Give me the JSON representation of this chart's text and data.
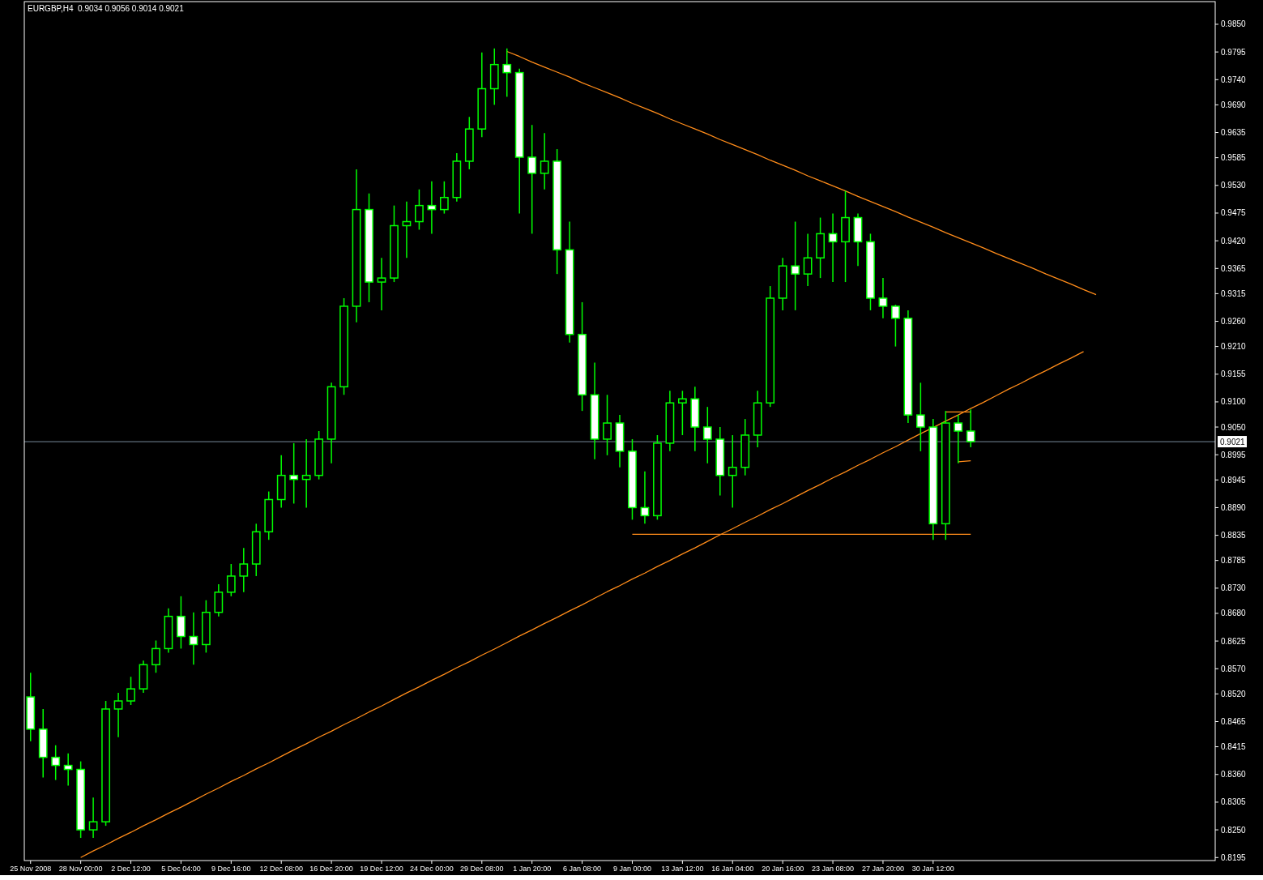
{
  "chart_data": {
    "type": "candlestick",
    "title": "EURGBP,H4  0.9034 0.9056 0.9014 0.9021",
    "color": "#00ff00",
    "categories": [
      "25 Nov 2008",
      null,
      null,
      null,
      "28 Nov 00:00",
      null,
      null,
      null,
      "2 Dec 12:00",
      null,
      null,
      null,
      "5 Dec 04:00",
      null,
      null,
      null,
      "9 Dec 16:00",
      null,
      null,
      null,
      "12 Dec 08:00",
      null,
      null,
      null,
      "16 Dec 20:00",
      null,
      null,
      null,
      "19 Dec 12:00",
      null,
      null,
      null,
      "24 Dec 00:00",
      null,
      null,
      null,
      "29 Dec 08:00",
      null,
      null,
      null,
      "1 Jan 20:00",
      null,
      null,
      null,
      "6 Jan 08:00",
      null,
      null,
      null,
      "9 Jan 00:00",
      null,
      null,
      null,
      "13 Jan 12:00",
      null,
      null,
      null,
      "16 Jan 04:00",
      null,
      null,
      null,
      "20 Jan 16:00",
      null,
      null,
      null,
      "23 Jan 08:00",
      null,
      null,
      null,
      "27 Jan 20:00",
      null,
      null,
      null,
      "30 Jan 12:00",
      null,
      null,
      null,
      null,
      null,
      null,
      null,
      null,
      null,
      null,
      null,
      null,
      null,
      null,
      null,
      null,
      null,
      null,
      null,
      null,
      null,
      null
    ],
    "ohlc": [
      [
        0.8514,
        0.8562,
        0.8426,
        0.845
      ],
      [
        0.845,
        0.849,
        0.8354,
        0.8394
      ],
      [
        0.8394,
        0.8418,
        0.8349,
        0.8378
      ],
      [
        0.8378,
        0.8402,
        0.8338,
        0.837
      ],
      [
        0.837,
        0.8386,
        0.8234,
        0.825
      ],
      [
        0.825,
        0.8314,
        0.8234,
        0.8266
      ],
      [
        0.8266,
        0.8506,
        0.8258,
        0.849
      ],
      [
        0.849,
        0.8522,
        0.8434,
        0.8506
      ],
      [
        0.8506,
        0.8554,
        0.8498,
        0.853
      ],
      [
        0.853,
        0.8586,
        0.8522,
        0.8578
      ],
      [
        0.8578,
        0.8626,
        0.8562,
        0.861
      ],
      [
        0.861,
        0.869,
        0.8602,
        0.8674
      ],
      [
        0.8674,
        0.8714,
        0.861,
        0.8634
      ],
      [
        0.8634,
        0.8682,
        0.8578,
        0.8618
      ],
      [
        0.8618,
        0.8706,
        0.8602,
        0.8682
      ],
      [
        0.8682,
        0.8738,
        0.8674,
        0.8722
      ],
      [
        0.8722,
        0.8778,
        0.8714,
        0.8754
      ],
      [
        0.8754,
        0.881,
        0.8722,
        0.8778
      ],
      [
        0.8778,
        0.8858,
        0.8754,
        0.8842
      ],
      [
        0.8842,
        0.8922,
        0.8826,
        0.8906
      ],
      [
        0.8906,
        0.8994,
        0.889,
        0.8954
      ],
      [
        0.8954,
        0.9018,
        0.8898,
        0.8946
      ],
      [
        0.8946,
        0.9026,
        0.889,
        0.8954
      ],
      [
        0.8954,
        0.9042,
        0.8946,
        0.9026
      ],
      [
        0.9026,
        0.9138,
        0.8978,
        0.913
      ],
      [
        0.913,
        0.9306,
        0.9114,
        0.929
      ],
      [
        0.929,
        0.9562,
        0.9258,
        0.9482
      ],
      [
        0.9482,
        0.9514,
        0.9298,
        0.9338
      ],
      [
        0.9338,
        0.9386,
        0.9282,
        0.9346
      ],
      [
        0.9346,
        0.949,
        0.9338,
        0.945
      ],
      [
        0.945,
        0.9498,
        0.9386,
        0.9458
      ],
      [
        0.9458,
        0.9522,
        0.9442,
        0.949
      ],
      [
        0.949,
        0.9538,
        0.9434,
        0.9482
      ],
      [
        0.9482,
        0.9538,
        0.9474,
        0.9506
      ],
      [
        0.9506,
        0.9594,
        0.9498,
        0.9578
      ],
      [
        0.9578,
        0.9666,
        0.9562,
        0.9642
      ],
      [
        0.9642,
        0.9794,
        0.9626,
        0.9722
      ],
      [
        0.9722,
        0.9802,
        0.969,
        0.977
      ],
      [
        0.977,
        0.9802,
        0.9706,
        0.9754
      ],
      [
        0.9754,
        0.9762,
        0.9474,
        0.9586
      ],
      [
        0.9586,
        0.965,
        0.9434,
        0.9554
      ],
      [
        0.9554,
        0.9634,
        0.9522,
        0.9578
      ],
      [
        0.9578,
        0.9602,
        0.9354,
        0.9402
      ],
      [
        0.9402,
        0.9458,
        0.9218,
        0.9234
      ],
      [
        0.9234,
        0.9298,
        0.9082,
        0.9114
      ],
      [
        0.9114,
        0.9178,
        0.8986,
        0.9026
      ],
      [
        0.9026,
        0.9114,
        0.8994,
        0.9058
      ],
      [
        0.9058,
        0.9074,
        0.897,
        0.9002
      ],
      [
        0.9002,
        0.9026,
        0.8866,
        0.889
      ],
      [
        0.889,
        0.8962,
        0.8858,
        0.8874
      ],
      [
        0.8874,
        0.9034,
        0.8866,
        0.9018
      ],
      [
        0.9018,
        0.9122,
        0.9002,
        0.9098
      ],
      [
        0.9098,
        0.9122,
        0.9034,
        0.9106
      ],
      [
        0.9106,
        0.913,
        0.9002,
        0.905
      ],
      [
        0.905,
        0.909,
        0.8978,
        0.9026
      ],
      [
        0.9026,
        0.905,
        0.8914,
        0.8954
      ],
      [
        0.8954,
        0.9034,
        0.889,
        0.897
      ],
      [
        0.897,
        0.9066,
        0.8954,
        0.9034
      ],
      [
        0.9034,
        0.9122,
        0.901,
        0.9098
      ],
      [
        0.9098,
        0.933,
        0.909,
        0.9306
      ],
      [
        0.9306,
        0.9386,
        0.9282,
        0.937
      ],
      [
        0.937,
        0.9458,
        0.9282,
        0.9354
      ],
      [
        0.9354,
        0.9434,
        0.933,
        0.9386
      ],
      [
        0.9386,
        0.9466,
        0.9346,
        0.9434
      ],
      [
        0.9434,
        0.9474,
        0.9338,
        0.9418
      ],
      [
        0.9418,
        0.9519,
        0.9338,
        0.9466
      ],
      [
        0.9466,
        0.9474,
        0.937,
        0.9418
      ],
      [
        0.9418,
        0.9434,
        0.9282,
        0.9306
      ],
      [
        0.9306,
        0.9346,
        0.9266,
        0.929
      ],
      [
        0.929,
        0.9293,
        0.921,
        0.9266
      ],
      [
        0.9266,
        0.9282,
        0.9058,
        0.9074
      ],
      [
        0.9074,
        0.9138,
        0.9002,
        0.905
      ],
      [
        0.905,
        0.9066,
        0.8826,
        0.8858
      ],
      [
        0.8858,
        0.9082,
        0.8826,
        0.9058
      ],
      [
        0.9058,
        0.9074,
        0.8978,
        0.9042
      ],
      [
        0.9042,
        0.9085,
        0.901,
        0.9021
      ],
      null,
      null,
      null,
      null,
      null,
      null,
      null,
      null,
      null,
      null,
      null,
      null,
      null,
      null,
      null,
      null,
      null,
      null,
      null
    ],
    "series": [
      {
        "type": "line",
        "color": "#ff8c1a",
        "values": [
          null,
          null,
          null,
          null,
          0.8195,
          0.8208,
          0.822,
          0.8233,
          0.8245,
          0.8258,
          0.827,
          0.8283,
          0.8295,
          0.8308,
          0.8321,
          0.8333,
          0.8346,
          0.8358,
          0.8371,
          0.8383,
          0.8396,
          0.8409,
          0.8421,
          0.8434,
          0.8446,
          0.8459,
          0.8471,
          0.8484,
          0.8496,
          0.8509,
          0.8522,
          0.8534,
          0.8547,
          0.8559,
          0.8572,
          0.8584,
          0.8597,
          0.8609,
          0.8622,
          0.8635,
          0.8647,
          0.866,
          0.8672,
          0.8685,
          0.8697,
          0.871,
          0.8723,
          0.8735,
          0.8748,
          0.876,
          0.8773,
          0.8785,
          0.8798,
          0.881,
          0.8823,
          0.8836,
          0.8848,
          0.8861,
          0.8873,
          0.8886,
          0.8898,
          0.8911,
          0.8924,
          0.8936,
          0.8949,
          0.8961,
          0.8974,
          0.8986,
          0.8999,
          0.9011,
          0.9024,
          0.9037,
          0.9049,
          0.9062,
          0.9074,
          0.9087,
          0.9099,
          0.9112,
          0.9125,
          0.9137,
          0.915,
          0.9162,
          0.9175,
          0.9187,
          0.92,
          null,
          null,
          null,
          null,
          null,
          null,
          null,
          null,
          null,
          null
        ]
      },
      {
        "type": "line",
        "color": "#ff8c1a",
        "values": [
          null,
          null,
          null,
          null,
          null,
          null,
          null,
          null,
          null,
          null,
          null,
          null,
          null,
          null,
          null,
          null,
          null,
          null,
          null,
          null,
          null,
          null,
          null,
          null,
          null,
          null,
          null,
          null,
          null,
          null,
          null,
          null,
          null,
          null,
          null,
          null,
          null,
          null,
          0.9796,
          0.9786,
          0.9775,
          0.9765,
          0.9755,
          0.9745,
          0.9734,
          0.9724,
          0.9714,
          0.9704,
          0.9693,
          0.9683,
          0.9673,
          0.9662,
          0.9652,
          0.9642,
          0.9632,
          0.9621,
          0.9611,
          0.9601,
          0.9591,
          0.958,
          0.957,
          0.956,
          0.9549,
          0.9539,
          0.9529,
          0.9519,
          0.9508,
          0.9498,
          0.9488,
          0.9478,
          0.9467,
          0.9457,
          0.9447,
          0.9436,
          0.9426,
          0.9416,
          0.9406,
          0.9395,
          0.9385,
          0.9375,
          0.9365,
          0.9354,
          0.9344,
          0.9334,
          0.9323,
          0.9313,
          null,
          null,
          null,
          null,
          null,
          null,
          null,
          null,
          null
        ]
      },
      {
        "type": "line",
        "color": "#ff8c1a",
        "values": [
          null,
          null,
          null,
          null,
          null,
          null,
          null,
          null,
          null,
          null,
          null,
          null,
          null,
          null,
          null,
          null,
          null,
          null,
          null,
          null,
          null,
          null,
          null,
          null,
          null,
          null,
          null,
          null,
          null,
          null,
          null,
          null,
          null,
          null,
          null,
          null,
          null,
          null,
          null,
          null,
          null,
          null,
          null,
          null,
          null,
          null,
          null,
          null,
          0.8837,
          0.8837,
          0.8837,
          0.8837,
          0.8837,
          0.8837,
          0.8837,
          0.8837,
          0.8837,
          0.8837,
          0.8837,
          0.8837,
          0.8837,
          0.8837,
          0.8837,
          0.8837,
          0.8837,
          0.8837,
          0.8837,
          0.8837,
          0.8837,
          0.8837,
          0.8837,
          0.8837,
          0.8837,
          0.8837,
          0.8837,
          0.8837,
          null,
          null,
          null,
          null,
          null,
          null,
          null,
          null,
          null,
          null,
          null,
          null,
          null,
          null,
          null,
          null,
          null,
          null,
          null
        ]
      },
      {
        "type": "line",
        "color": "#ff8c1a",
        "values": [
          null,
          null,
          null,
          null,
          null,
          null,
          null,
          null,
          null,
          null,
          null,
          null,
          null,
          null,
          null,
          null,
          null,
          null,
          null,
          null,
          null,
          null,
          null,
          null,
          null,
          null,
          null,
          null,
          null,
          null,
          null,
          null,
          null,
          null,
          null,
          null,
          null,
          null,
          null,
          null,
          null,
          null,
          null,
          null,
          null,
          null,
          null,
          null,
          null,
          null,
          null,
          null,
          null,
          null,
          null,
          null,
          null,
          null,
          null,
          null,
          null,
          null,
          null,
          null,
          null,
          null,
          null,
          null,
          null,
          null,
          null,
          null,
          null,
          0.908,
          0.908,
          0.908,
          null,
          null,
          null,
          null,
          null,
          null,
          null,
          null,
          null,
          null,
          null,
          null,
          null,
          null,
          null,
          null,
          null,
          null,
          null
        ]
      },
      {
        "type": "line",
        "color": "#ff8c1a",
        "values": [
          null,
          null,
          null,
          null,
          null,
          null,
          null,
          null,
          null,
          null,
          null,
          null,
          null,
          null,
          null,
          null,
          null,
          null,
          null,
          null,
          null,
          null,
          null,
          null,
          null,
          null,
          null,
          null,
          null,
          null,
          null,
          null,
          null,
          null,
          null,
          null,
          null,
          null,
          null,
          null,
          null,
          null,
          null,
          null,
          null,
          null,
          null,
          null,
          null,
          null,
          null,
          null,
          null,
          null,
          null,
          null,
          null,
          null,
          null,
          null,
          null,
          null,
          null,
          null,
          null,
          null,
          null,
          null,
          null,
          null,
          null,
          null,
          null,
          null,
          0.8981,
          0.8983,
          null,
          null,
          null,
          null,
          null,
          null,
          null,
          null,
          null,
          null,
          null,
          null,
          null,
          null,
          null,
          null,
          null,
          null,
          null
        ]
      }
    ],
    "ylim": [
      0.8189,
      0.9895
    ],
    "yticks": [
      {
        "value": 0.985,
        "label": "0.9850"
      },
      {
        "value": 0.9795,
        "label": "0.9795"
      },
      {
        "value": 0.974,
        "label": "0.9740"
      },
      {
        "value": 0.969,
        "label": "0.9690"
      },
      {
        "value": 0.9635,
        "label": "0.9635"
      },
      {
        "value": 0.9585,
        "label": "0.9585"
      },
      {
        "value": 0.953,
        "label": "0.9530"
      },
      {
        "value": 0.9475,
        "label": "0.9475"
      },
      {
        "value": 0.942,
        "label": "0.9420"
      },
      {
        "value": 0.9365,
        "label": "0.9365"
      },
      {
        "value": 0.9315,
        "label": "0.9315"
      },
      {
        "value": 0.926,
        "label": "0.9260"
      },
      {
        "value": 0.921,
        "label": "0.9210"
      },
      {
        "value": 0.9155,
        "label": "0.9155"
      },
      {
        "value": 0.91,
        "label": "0.9100"
      },
      {
        "value": 0.905,
        "label": "0.9050"
      },
      {
        "value": 0.8995,
        "label": "0.8995"
      },
      {
        "value": 0.8945,
        "label": "0.8945"
      },
      {
        "value": 0.889,
        "label": "0.8890"
      },
      {
        "value": 0.8835,
        "label": "0.8835"
      },
      {
        "value": 0.8785,
        "label": "0.8785"
      },
      {
        "value": 0.873,
        "label": "0.8730"
      },
      {
        "value": 0.868,
        "label": "0.8680"
      },
      {
        "value": 0.8625,
        "label": "0.8625"
      },
      {
        "value": 0.857,
        "label": "0.8570"
      },
      {
        "value": 0.852,
        "label": "0.8520"
      },
      {
        "value": 0.8465,
        "label": "0.8465"
      },
      {
        "value": 0.8415,
        "label": "0.8415"
      },
      {
        "value": 0.836,
        "label": "0.8360"
      },
      {
        "value": 0.8305,
        "label": "0.8305"
      },
      {
        "value": 0.825,
        "label": "0.8250"
      },
      {
        "value": 0.8195,
        "label": "0.8195"
      }
    ],
    "ref_lines": [
      {
        "axis": "y",
        "value": 0.9021,
        "label": "0.9021",
        "color": "#778899"
      }
    ]
  }
}
